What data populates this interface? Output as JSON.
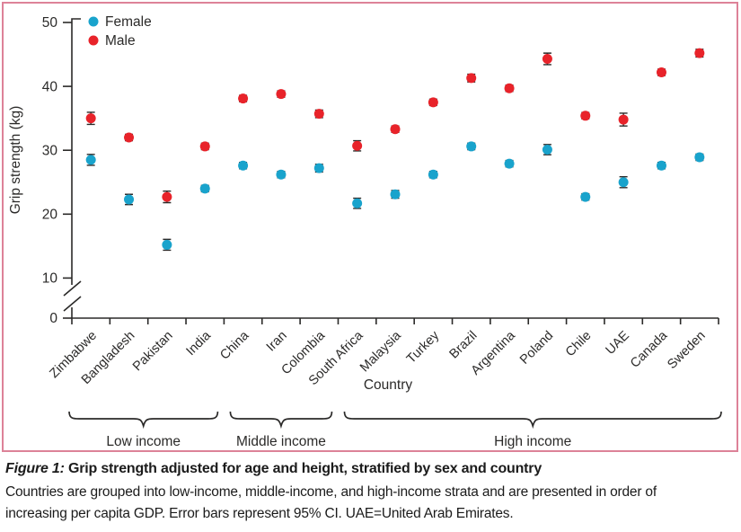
{
  "figure": {
    "border_color": "#dd8298",
    "caption": {
      "label": "Figure 1:",
      "title": "Grip strength adjusted for age and height, stratified by sex and country",
      "body": "Countries are grouped into low-income, middle-income, and high-income strata and are presented in order of increasing per capita GDP. Error bars represent 95% CI. UAE=United Arab Emirates."
    }
  },
  "chart_data": {
    "type": "scatter",
    "title": "",
    "xlabel": "Country",
    "ylabel": "Grip strength (kg)",
    "ylim": [
      0,
      50
    ],
    "yticks": [
      0,
      10,
      20,
      30,
      40,
      50
    ],
    "axis_break_between": [
      0,
      10
    ],
    "grid": false,
    "legend_position": "top-left",
    "text_color": "#2b2a29",
    "marker": "circle",
    "error_bars": "95% CI",
    "categories": [
      "Zimbabwe",
      "Bangladesh",
      "Pakistan",
      "India",
      "China",
      "Iran",
      "Colombia",
      "South Africa",
      "Malaysia",
      "Turkey",
      "Brazil",
      "Argentina",
      "Poland",
      "Chile",
      "UAE",
      "Canada",
      "Sweden"
    ],
    "series": [
      {
        "name": "Female",
        "color": "#19a3cc",
        "values": [
          28.5,
          22.3,
          15.2,
          24.0,
          27.6,
          26.2,
          27.2,
          21.7,
          23.1,
          26.2,
          30.6,
          27.9,
          30.1,
          22.7,
          25.0,
          27.6,
          28.9
        ],
        "ci95_halfwidth": [
          0.85,
          0.8,
          0.85,
          0.5,
          0.5,
          0.5,
          0.6,
          0.8,
          0.6,
          0.5,
          0.5,
          0.5,
          0.8,
          0.5,
          0.85,
          0.5,
          0.5
        ]
      },
      {
        "name": "Male",
        "color": "#e8232a",
        "values": [
          35.0,
          32.0,
          22.7,
          30.6,
          38.1,
          38.8,
          35.7,
          30.7,
          33.3,
          37.5,
          41.3,
          39.7,
          44.3,
          35.4,
          34.8,
          42.2,
          45.2
        ],
        "ci95_halfwidth": [
          0.95,
          0.5,
          0.9,
          0.5,
          0.5,
          0.5,
          0.6,
          0.8,
          0.5,
          0.5,
          0.6,
          0.5,
          0.9,
          0.5,
          1.0,
          0.5,
          0.6
        ]
      }
    ],
    "groups": [
      {
        "label": "Low income",
        "start": 0,
        "end": 3
      },
      {
        "label": "Middle income",
        "start": 4,
        "end": 6
      },
      {
        "label": "High income",
        "start": 7,
        "end": 16
      }
    ]
  }
}
